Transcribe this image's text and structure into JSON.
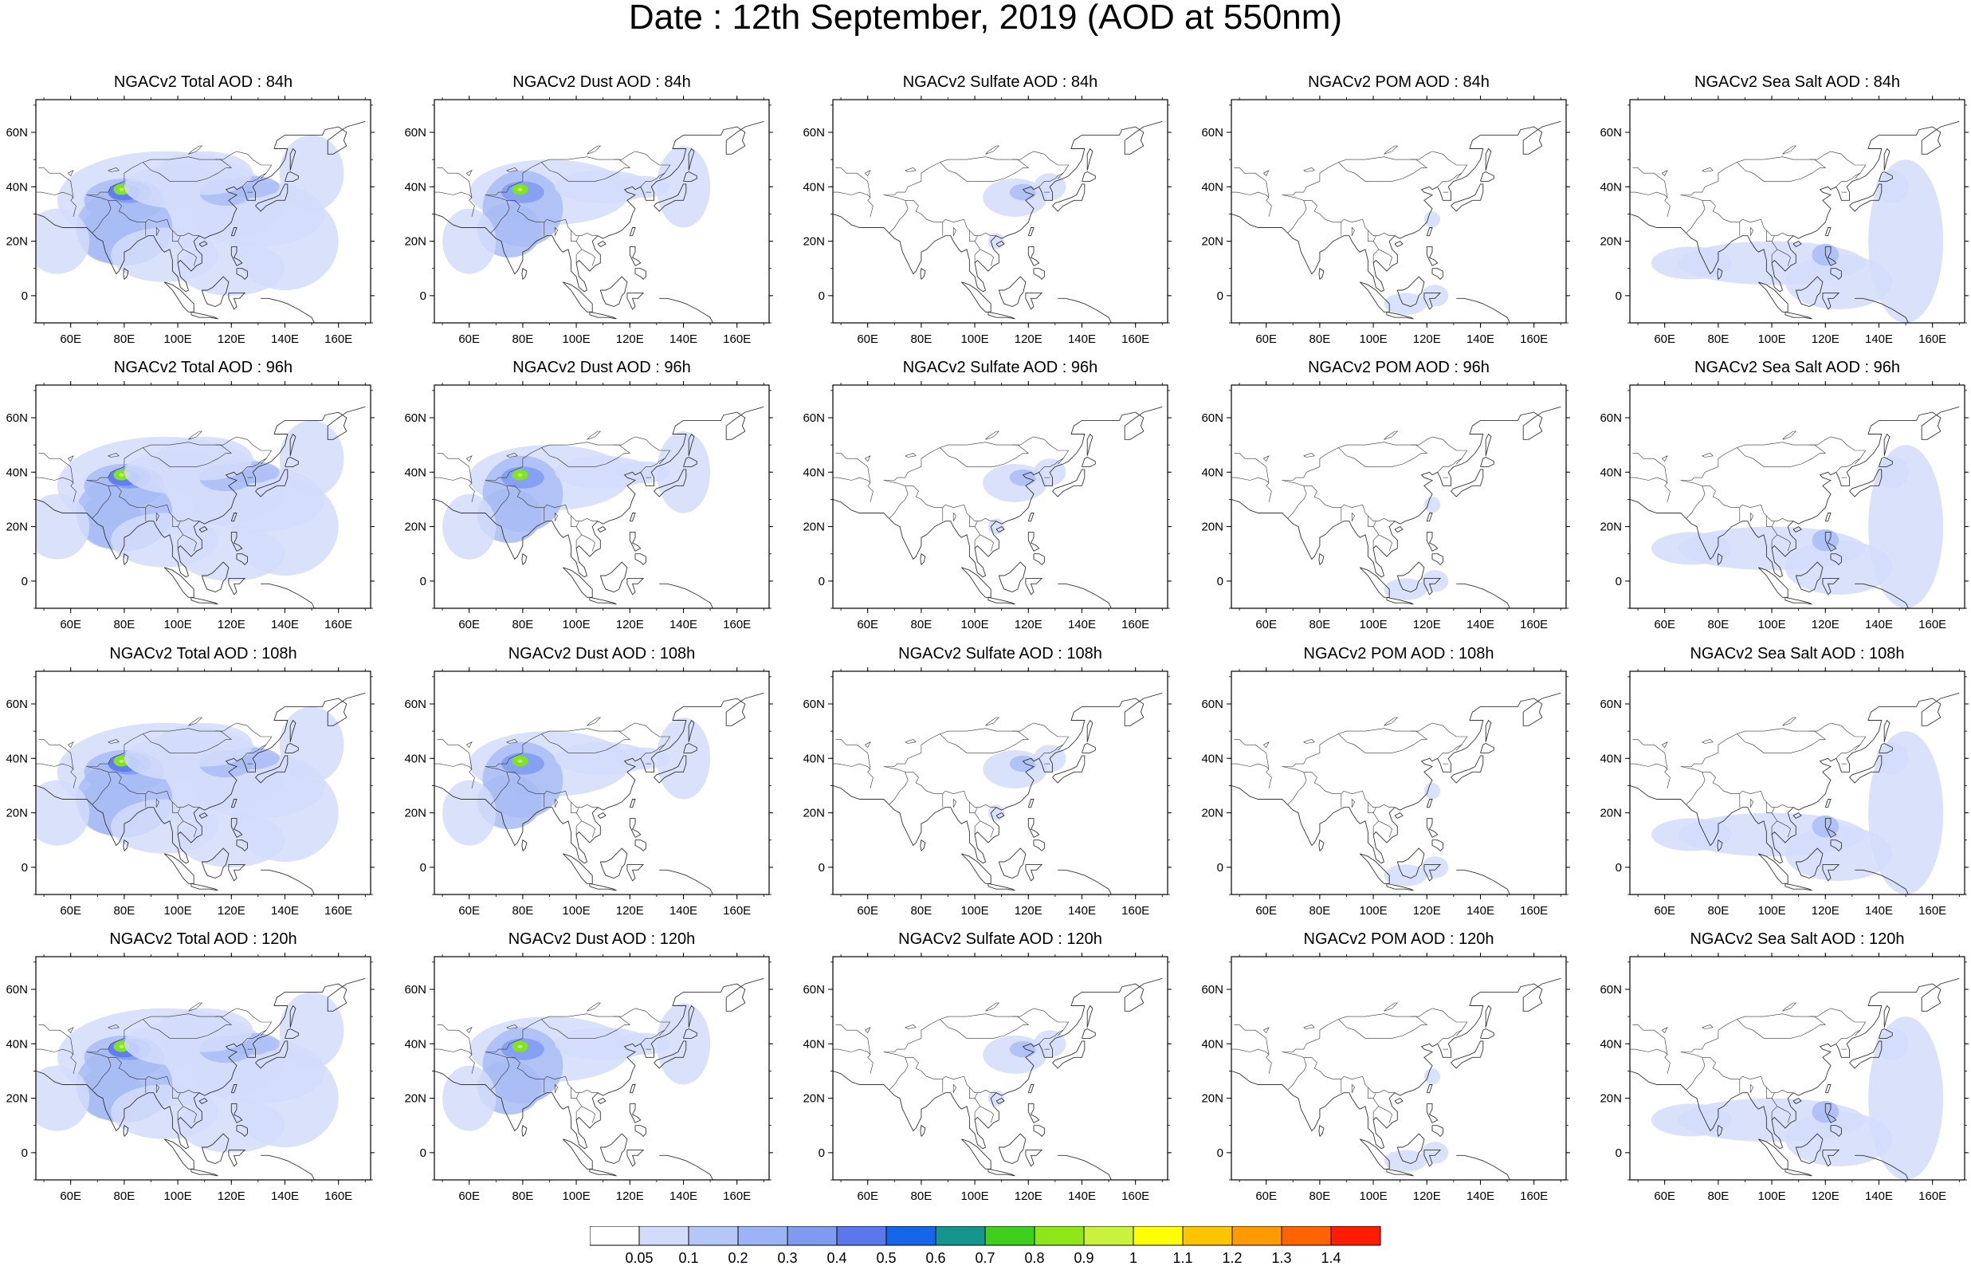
{
  "title": "Date : 12th September, 2019 (AOD at 550nm)",
  "colors": {
    "map_outline": "#333333",
    "aerosol_light": "#d2dcfa",
    "aerosol_mid": "#a8bcf5",
    "aerosol_strong": "#7f9bf0",
    "aerosol_heavy": "#5a78ec",
    "hotspot_green": "#7ee32a",
    "hotspot_yellow": "#d9f04a"
  },
  "axis": {
    "lon_ticks": [
      "60E",
      "80E",
      "100E",
      "120E",
      "140E",
      "160E"
    ],
    "lat_ticks": [
      "60N",
      "40N",
      "20N",
      "0"
    ]
  },
  "columns": [
    "total",
    "dust",
    "sulfate",
    "pom",
    "seasalt"
  ],
  "panels": [
    [
      "NGACv2 Total AOD : 84h",
      "NGACv2 Dust AOD : 84h",
      "NGACv2 Sulfate AOD : 84h",
      "NGACv2 POM AOD : 84h",
      "NGACv2 Sea Salt AOD : 84h"
    ],
    [
      "NGACv2 Total AOD : 96h",
      "NGACv2 Dust AOD : 96h",
      "NGACv2 Sulfate AOD : 96h",
      "NGACv2 POM AOD : 96h",
      "NGACv2 Sea Salt AOD : 96h"
    ],
    [
      "NGACv2 Total AOD : 108h",
      "NGACv2 Dust AOD : 108h",
      "NGACv2 Sulfate AOD : 108h",
      "NGACv2 POM AOD : 108h",
      "NGACv2 Sea Salt AOD : 108h"
    ],
    [
      "NGACv2 Total AOD : 120h",
      "NGACv2 Dust AOD : 120h",
      "NGACv2 Sulfate AOD : 120h",
      "NGACv2 POM AOD : 120h",
      "NGACv2 Sea Salt  AOD : 120h"
    ]
  ],
  "colorbar": {
    "labels": [
      "0.05",
      "0.1",
      "0.2",
      "0.3",
      "0.4",
      "0.5",
      "0.6",
      "0.7",
      "0.8",
      "0.9",
      "1",
      "1.1",
      "1.2",
      "1.3",
      "1.4"
    ],
    "colors": [
      "#ffffff",
      "#d2dcfa",
      "#b4c7f7",
      "#9cb4f5",
      "#7f9bf0",
      "#5a78ec",
      "#1566e9",
      "#14968f",
      "#3fcf1f",
      "#8ee619",
      "#c9f23c",
      "#ffff00",
      "#ffc400",
      "#ff9a00",
      "#ff6400",
      "#ff1c00"
    ]
  }
}
